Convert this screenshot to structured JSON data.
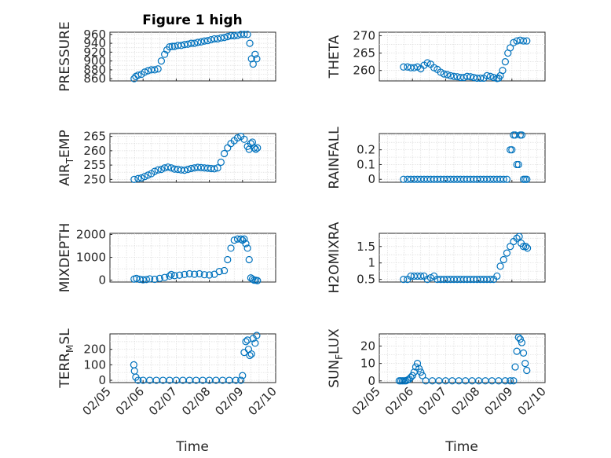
{
  "figure": {
    "title": "Figure 1 high",
    "marker_color": "#0072BD",
    "x_tick_labels": [
      "02/05",
      "02/06",
      "02/07",
      "02/08",
      "02/09",
      "02/10"
    ],
    "x_label": "Time"
  },
  "chart_data": [
    {
      "type": "scatter",
      "ylabel": "PRESSURE",
      "title": "Figure 1 high",
      "xlim": [
        0,
        5
      ],
      "ylim": [
        855,
        965
      ],
      "yticks": [
        860,
        880,
        900,
        920,
        940,
        960
      ],
      "x_tick_labels": [
        "02/05",
        "02/06",
        "02/07",
        "02/08",
        "02/09",
        "02/10"
      ],
      "series": [
        {
          "x": [
            0.73,
            0.78,
            0.85,
            0.95,
            1.05,
            1.15,
            1.25,
            1.35,
            1.45,
            1.55,
            1.65,
            1.72,
            1.8,
            1.88,
            1.95,
            2.05,
            2.15,
            2.25,
            2.35,
            2.45,
            2.55,
            2.65,
            2.75,
            2.85,
            2.95,
            3.05,
            3.15,
            3.25,
            3.35,
            3.45,
            3.55,
            3.65,
            3.75,
            3.85,
            3.95,
            4.05,
            4.15,
            4.22,
            4.27,
            4.32,
            4.38,
            4.43
          ],
          "y": [
            860,
            865,
            868,
            870,
            875,
            878,
            880,
            880,
            882,
            900,
            915,
            925,
            932,
            933,
            933,
            935,
            935,
            937,
            938,
            940,
            940,
            942,
            943,
            945,
            946,
            948,
            950,
            950,
            952,
            953,
            955,
            957,
            957,
            958,
            960,
            960,
            960,
            940,
            905,
            893,
            915,
            905
          ]
        }
      ]
    },
    {
      "type": "scatter",
      "ylabel": "THETA",
      "xlim": [
        0,
        5
      ],
      "ylim": [
        257,
        271
      ],
      "yticks": [
        260,
        265,
        270
      ],
      "x_tick_labels": [
        "02/05",
        "02/06",
        "02/07",
        "02/08",
        "02/09",
        "02/10"
      ],
      "series": [
        {
          "x": [
            0.73,
            0.85,
            0.95,
            1.05,
            1.15,
            1.25,
            1.35,
            1.45,
            1.55,
            1.65,
            1.75,
            1.85,
            1.95,
            2.05,
            2.15,
            2.25,
            2.35,
            2.45,
            2.55,
            2.65,
            2.75,
            2.85,
            2.95,
            3.05,
            3.15,
            3.25,
            3.35,
            3.45,
            3.55,
            3.6,
            3.65,
            3.72,
            3.8,
            3.88,
            3.95,
            4.05,
            4.15,
            4.25,
            4.35,
            4.45
          ],
          "y": [
            261,
            261,
            260.8,
            260.8,
            261,
            260.5,
            261.5,
            262.2,
            261.8,
            260.8,
            260.3,
            259.5,
            259,
            258.8,
            258.5,
            258.3,
            258.2,
            258,
            258,
            258.3,
            258.2,
            258,
            257.8,
            257.8,
            257.8,
            258.5,
            258.3,
            258,
            257.7,
            257.8,
            258.5,
            260,
            262.5,
            265,
            266.5,
            268,
            268.5,
            268.7,
            268.5,
            268.5
          ]
        }
      ]
    },
    {
      "type": "scatter",
      "ylabel": "AIR_TEMP",
      "xlim": [
        0,
        5
      ],
      "ylim": [
        249,
        266
      ],
      "yticks": [
        250,
        255,
        260,
        265
      ],
      "x_tick_labels": [
        "02/05",
        "02/06",
        "02/07",
        "02/08",
        "02/09",
        "02/10"
      ],
      "series": [
        {
          "x": [
            0.73,
            0.85,
            0.95,
            1.05,
            1.15,
            1.25,
            1.35,
            1.45,
            1.55,
            1.65,
            1.75,
            1.85,
            1.95,
            2.05,
            2.15,
            2.25,
            2.35,
            2.45,
            2.55,
            2.65,
            2.75,
            2.85,
            2.95,
            3.05,
            3.15,
            3.25,
            3.35,
            3.45,
            3.55,
            3.65,
            3.75,
            3.85,
            3.95,
            4.05,
            4.15,
            4.2,
            4.25,
            4.3,
            4.35,
            4.4,
            4.45
          ],
          "y": [
            250,
            250.3,
            250.5,
            251,
            251.5,
            252,
            252.8,
            253.3,
            253.5,
            254,
            254.3,
            254,
            253.6,
            253.5,
            253.3,
            253.2,
            253.5,
            253.8,
            254,
            254.2,
            254.1,
            254,
            253.9,
            253.8,
            253.7,
            254,
            256,
            259,
            261,
            262.5,
            263.5,
            264.5,
            265,
            264,
            261.5,
            260.5,
            262.5,
            263,
            261,
            260.5,
            261
          ]
        }
      ]
    },
    {
      "type": "scatter",
      "ylabel": "RAINFALL",
      "xlim": [
        0,
        5
      ],
      "ylim": [
        -0.02,
        0.31
      ],
      "yticks": [
        0,
        0.1,
        0.2
      ],
      "x_tick_labels": [
        "02/05",
        "02/06",
        "02/07",
        "02/08",
        "02/09",
        "02/10"
      ],
      "series": [
        {
          "x": [
            0.73,
            0.85,
            0.95,
            1.05,
            1.15,
            1.25,
            1.35,
            1.45,
            1.55,
            1.65,
            1.75,
            1.85,
            1.95,
            2.05,
            2.15,
            2.25,
            2.35,
            2.45,
            2.55,
            2.65,
            2.75,
            2.85,
            2.95,
            3.05,
            3.15,
            3.25,
            3.35,
            3.45,
            3.55,
            3.65,
            3.75,
            3.85,
            3.95,
            4.0,
            4.05,
            4.1,
            4.15,
            4.2,
            4.25,
            4.3,
            4.35,
            4.4,
            4.45
          ],
          "y": [
            0,
            0,
            0,
            0,
            0,
            0,
            0,
            0,
            0,
            0,
            0,
            0,
            0,
            0,
            0,
            0,
            0,
            0,
            0,
            0,
            0,
            0,
            0,
            0,
            0,
            0,
            0,
            0,
            0,
            0,
            0,
            0,
            0.2,
            0.2,
            0.3,
            0.3,
            0.1,
            0.1,
            0.3,
            0.3,
            0,
            0,
            0
          ]
        }
      ]
    },
    {
      "type": "scatter",
      "ylabel": "MIXDEPTH",
      "xlim": [
        0,
        5
      ],
      "ylim": [
        -80,
        2050
      ],
      "yticks": [
        0,
        1000,
        2000
      ],
      "x_tick_labels": [
        "02/05",
        "02/06",
        "02/07",
        "02/08",
        "02/09",
        "02/10"
      ],
      "series": [
        {
          "x": [
            0.73,
            0.8,
            0.9,
            1.0,
            1.1,
            1.2,
            1.35,
            1.5,
            1.65,
            1.8,
            1.85,
            1.95,
            2.1,
            2.25,
            2.4,
            2.55,
            2.7,
            2.85,
            3.0,
            3.15,
            3.3,
            3.45,
            3.55,
            3.65,
            3.75,
            3.85,
            3.95,
            4.0,
            4.05,
            4.1,
            4.15,
            4.2,
            4.25,
            4.3,
            4.35,
            4.4,
            4.45
          ],
          "y": [
            50,
            80,
            40,
            20,
            30,
            60,
            40,
            80,
            120,
            180,
            250,
            200,
            220,
            250,
            280,
            260,
            280,
            240,
            230,
            260,
            380,
            420,
            900,
            1400,
            1750,
            1800,
            1800,
            1750,
            1800,
            1600,
            1400,
            900,
            100,
            50,
            0,
            0,
            -20
          ]
        }
      ]
    },
    {
      "type": "scatter",
      "ylabel": "H2OMIXRA",
      "xlim": [
        0,
        5
      ],
      "ylim": [
        0.42,
        1.9
      ],
      "yticks": [
        0.5,
        1,
        1.5
      ],
      "x_tick_labels": [
        "02/05",
        "02/06",
        "02/07",
        "02/08",
        "02/09",
        "02/10"
      ],
      "series": [
        {
          "x": [
            0.73,
            0.85,
            0.95,
            1.05,
            1.15,
            1.25,
            1.35,
            1.45,
            1.55,
            1.65,
            1.75,
            1.85,
            1.95,
            2.05,
            2.15,
            2.25,
            2.35,
            2.45,
            2.55,
            2.65,
            2.75,
            2.85,
            2.95,
            3.05,
            3.15,
            3.25,
            3.35,
            3.45,
            3.55,
            3.65,
            3.75,
            3.85,
            3.95,
            4.05,
            4.15,
            4.22,
            4.28,
            4.35,
            4.42,
            4.47
          ],
          "y": [
            0.5,
            0.5,
            0.6,
            0.6,
            0.6,
            0.6,
            0.6,
            0.5,
            0.55,
            0.6,
            0.5,
            0.5,
            0.5,
            0.5,
            0.5,
            0.5,
            0.5,
            0.5,
            0.5,
            0.5,
            0.5,
            0.5,
            0.5,
            0.5,
            0.5,
            0.5,
            0.5,
            0.5,
            0.6,
            0.9,
            1.1,
            1.3,
            1.5,
            1.65,
            1.75,
            1.8,
            1.6,
            1.5,
            1.5,
            1.45
          ]
        }
      ]
    },
    {
      "type": "scatter",
      "ylabel": "TERR_MSL",
      "xlim": [
        0,
        5
      ],
      "ylim": [
        -15,
        300
      ],
      "yticks": [
        0,
        100,
        200
      ],
      "x_tick_labels": [
        "02/05",
        "02/06",
        "02/07",
        "02/08",
        "02/09",
        "02/10"
      ],
      "series": [
        {
          "x": [
            0.72,
            0.74,
            0.78,
            0.85,
            1.0,
            1.2,
            1.4,
            1.6,
            1.8,
            2.0,
            2.2,
            2.4,
            2.6,
            2.8,
            3.0,
            3.2,
            3.4,
            3.6,
            3.8,
            3.95,
            4.0,
            4.05,
            4.1,
            4.15,
            4.18,
            4.22,
            4.27,
            4.32,
            4.38,
            4.43
          ],
          "y": [
            100,
            60,
            20,
            0,
            0,
            0,
            0,
            0,
            0,
            0,
            0,
            0,
            0,
            0,
            0,
            0,
            0,
            0,
            0,
            0,
            30,
            180,
            250,
            260,
            200,
            160,
            170,
            270,
            240,
            290
          ]
        }
      ]
    },
    {
      "type": "scatter",
      "ylabel": "SUN_FLUX",
      "xlim": [
        0,
        5
      ],
      "ylim": [
        -1,
        27
      ],
      "yticks": [
        0,
        10,
        20
      ],
      "x_tick_labels": [
        "02/05",
        "02/06",
        "02/07",
        "02/08",
        "02/09",
        "02/10"
      ],
      "series": [
        {
          "x": [
            0.6,
            0.65,
            0.7,
            0.75,
            0.8,
            0.85,
            0.9,
            0.95,
            1.0,
            1.05,
            1.1,
            1.15,
            1.2,
            1.25,
            1.3,
            1.4,
            1.6,
            1.8,
            2.0,
            2.2,
            2.4,
            2.6,
            2.8,
            3.0,
            3.2,
            3.4,
            3.6,
            3.8,
            3.95,
            4.05,
            4.1,
            4.15,
            4.2,
            4.25,
            4.3,
            4.35,
            4.4,
            4.45
          ],
          "y": [
            0,
            0,
            0,
            0,
            0,
            0.5,
            1,
            2,
            3,
            5,
            8,
            10,
            7,
            5,
            3,
            0,
            0,
            0,
            0,
            0,
            0,
            0,
            0,
            0,
            0,
            0,
            0,
            0,
            0,
            0,
            8,
            17,
            25,
            24,
            22,
            16,
            10,
            6
          ]
        }
      ]
    }
  ]
}
